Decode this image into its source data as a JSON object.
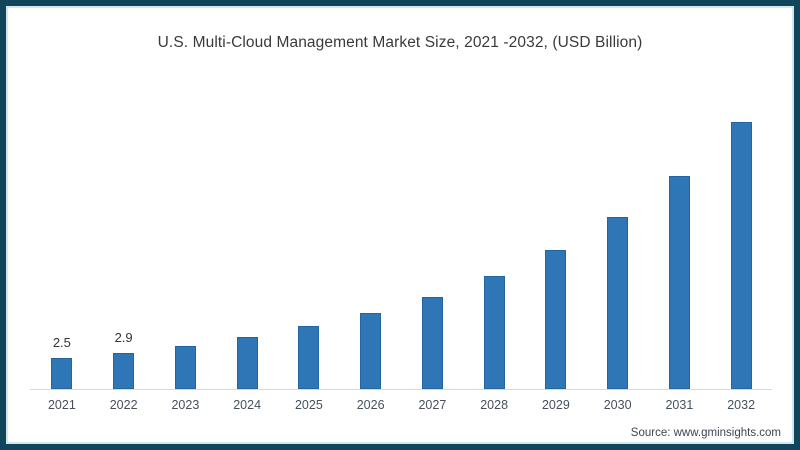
{
  "title": "U.S. Multi-Cloud Management Market Size, 2021 -2032, (USD Billion)",
  "source": "Source: www.gminsights.com",
  "colors": {
    "bar": "#2e76b5",
    "frame_border": "#10455c",
    "axis_line": "#d9d9d9",
    "title_text": "#3a3a3a",
    "tick_text": "#47505e"
  },
  "chart_data": {
    "type": "bar",
    "title": "U.S. Multi-Cloud Management Market Size, 2021 -2032, (USD Billion)",
    "categories": [
      "2021",
      "2022",
      "2023",
      "2024",
      "2025",
      "2026",
      "2027",
      "2028",
      "2029",
      "2030",
      "2031",
      "2032"
    ],
    "values": [
      2.5,
      2.9,
      3.5,
      4.2,
      5.1,
      6.1,
      7.4,
      9.1,
      11.2,
      13.9,
      17.2,
      21.5
    ],
    "data_labels": [
      "2.5",
      "2.9",
      "",
      "",
      "",
      "",
      "",
      "",
      "",
      "",
      "",
      ""
    ],
    "xlabel": "",
    "ylabel": "",
    "ylim": [
      0,
      22
    ],
    "grid": false,
    "legend": false
  }
}
